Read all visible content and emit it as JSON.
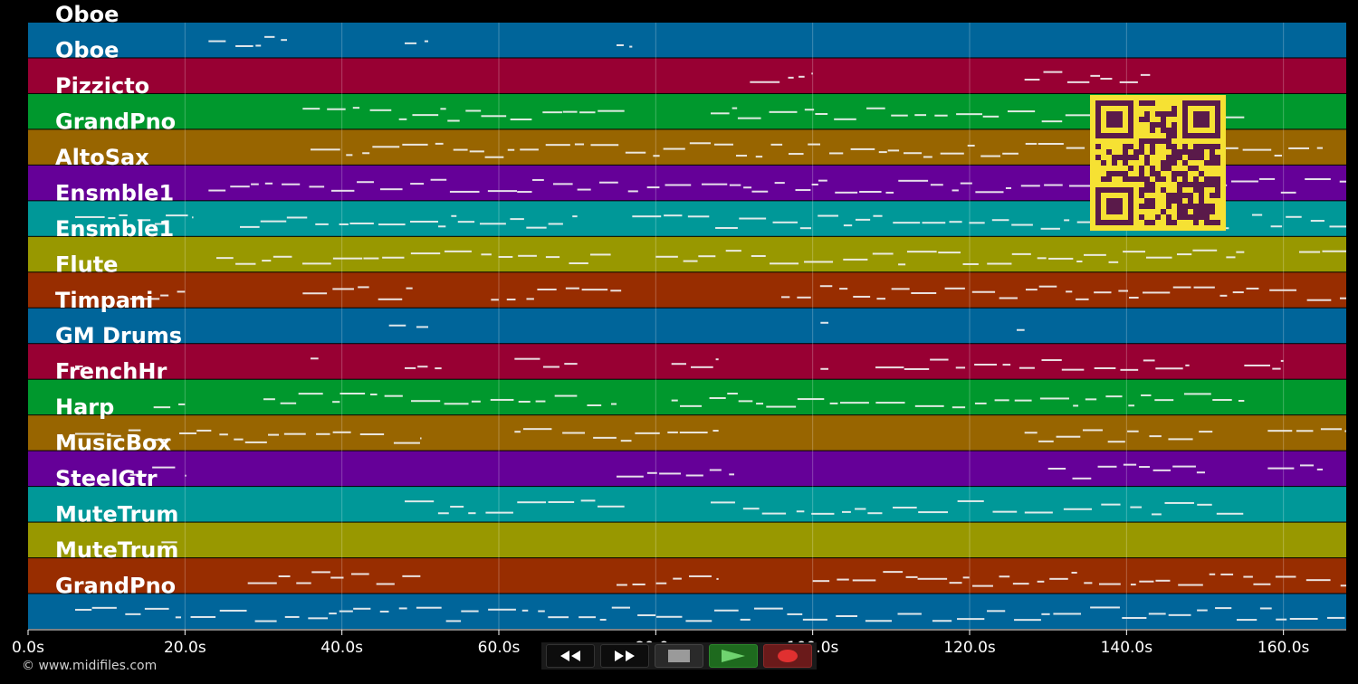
{
  "tracks": [
    {
      "label": "Oboe",
      "color": "#00659a"
    },
    {
      "label": "Oboe",
      "color": "#980033"
    },
    {
      "label": "Pizzicto",
      "color": "#00982d"
    },
    {
      "label": "GrandPno",
      "color": "#986500"
    },
    {
      "label": "AltoSax",
      "color": "#650098"
    },
    {
      "label": "Ensmble1",
      "color": "#009898"
    },
    {
      "label": "Ensmble1",
      "color": "#989800"
    },
    {
      "label": "Flute",
      "color": "#982d00"
    },
    {
      "label": "Timpani",
      "color": "#00659a"
    },
    {
      "label": "GM Drums",
      "color": "#980033"
    },
    {
      "label": "FrenchHr",
      "color": "#00982d"
    },
    {
      "label": "Harp",
      "color": "#986500"
    },
    {
      "label": "MusicBox",
      "color": "#650098"
    },
    {
      "label": "SteelGtr",
      "color": "#009898"
    },
    {
      "label": "MuteTrum",
      "color": "#989800"
    },
    {
      "label": "MuteTrum",
      "color": "#982d00"
    },
    {
      "label": "GrandPno",
      "color": "#00659a"
    }
  ],
  "time_axis": {
    "max_seconds": 168,
    "ticks": [
      "0.0s",
      "20.0s",
      "40.0s",
      "60.0s",
      "80.0s",
      "100.0s",
      "120.0s",
      "140.0s",
      "160.0s"
    ],
    "tick_values": [
      0,
      20,
      40,
      60,
      80,
      100,
      120,
      140,
      160
    ]
  },
  "notes_seed": [
    [
      [
        23,
        33
      ],
      [
        48,
        51
      ],
      [
        75,
        77
      ]
    ],
    [
      [
        92,
        100
      ],
      [
        127,
        143
      ]
    ],
    [
      [
        35,
        76
      ],
      [
        87,
        137
      ],
      [
        140,
        155
      ]
    ],
    [
      [
        36,
        165
      ]
    ],
    [
      [
        23,
        168
      ]
    ],
    [
      [
        6,
        21
      ],
      [
        27,
        70
      ],
      [
        77,
        154
      ],
      [
        156,
        168
      ]
    ],
    [
      [
        24,
        75
      ],
      [
        80,
        155
      ],
      [
        162,
        168
      ]
    ],
    [
      [
        13,
        20
      ],
      [
        35,
        49
      ],
      [
        59,
        76
      ],
      [
        96,
        168
      ]
    ],
    [
      [
        46,
        51
      ],
      [
        101,
        102
      ],
      [
        126,
        127
      ]
    ],
    [
      [
        6,
        7
      ],
      [
        36,
        37
      ],
      [
        48,
        53
      ],
      [
        62,
        70
      ],
      [
        82,
        88
      ],
      [
        101,
        102
      ],
      [
        108,
        148
      ],
      [
        155,
        160
      ]
    ],
    [
      [
        16,
        20
      ],
      [
        30,
        75
      ],
      [
        82,
        155
      ]
    ],
    [
      [
        6,
        50
      ],
      [
        62,
        88
      ],
      [
        127,
        152
      ],
      [
        158,
        168
      ]
    ],
    [
      [
        13,
        20
      ],
      [
        75,
        90
      ],
      [
        130,
        150
      ],
      [
        158,
        165
      ]
    ],
    [
      [
        48,
        76
      ],
      [
        87,
        155
      ]
    ],
    [
      [
        17,
        19
      ]
    ],
    [
      [
        28,
        50
      ],
      [
        75,
        88
      ],
      [
        100,
        168
      ]
    ],
    [
      [
        6,
        168
      ]
    ]
  ],
  "qr_label": "qr-code",
  "copyright": "© www.midifiles.com",
  "transport": {
    "rewind_icon": "rewind-icon",
    "fast_forward_icon": "fast-forward-icon",
    "stop_icon": "stop-icon",
    "play_icon": "play-icon",
    "record_icon": "record-icon"
  }
}
